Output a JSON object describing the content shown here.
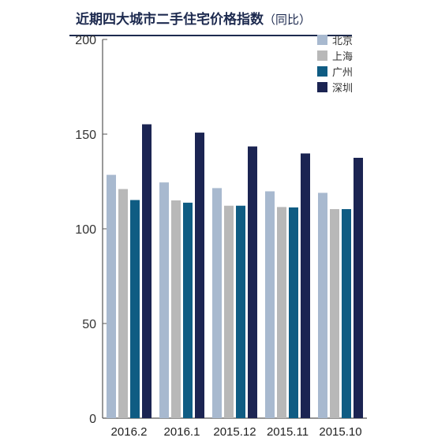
{
  "title": "近期四大城市二手住宅价格指数",
  "title_suffix": "（同比）",
  "chart_data": {
    "type": "bar",
    "title": "近期四大城市二手住宅价格指数（同比）",
    "categories": [
      "2016.2",
      "2016.1",
      "2015.12",
      "2015.11",
      "2015.10"
    ],
    "ylim": [
      0,
      200
    ],
    "yticks": [
      0,
      50,
      100,
      150,
      200
    ],
    "grid": false,
    "legend_position": "top-right",
    "series": [
      {
        "name": "北京",
        "color": "#a8b9cf",
        "values": [
          128.5,
          124.5,
          121.5,
          119.8,
          119.0
        ]
      },
      {
        "name": "上海",
        "color": "#b8b8b8",
        "values": [
          121.0,
          115.0,
          112.2,
          111.5,
          110.4
        ]
      },
      {
        "name": "广州",
        "color": "#0f5c83",
        "values": [
          115.2,
          113.8,
          112.2,
          111.3,
          110.4
        ]
      },
      {
        "name": "深圳",
        "color": "#1b2452",
        "values": [
          155.2,
          150.8,
          143.5,
          139.8,
          137.5
        ]
      }
    ]
  }
}
